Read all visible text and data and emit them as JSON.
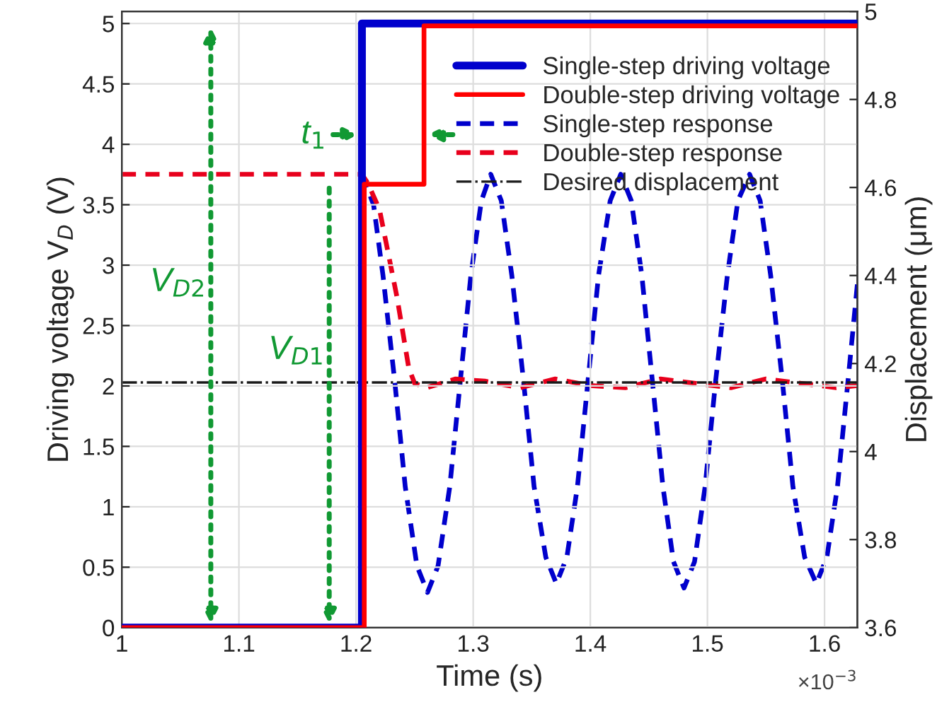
{
  "chart_data": {
    "type": "line",
    "xlabel": "Time (s)",
    "ylabel": "Driving voltage V$_{D}$ (V)",
    "y2label": "Displacement (μm)",
    "xlim": [
      1,
      1.628
    ],
    "xticks": [
      1,
      1.1,
      1.2,
      1.3,
      1.4,
      1.5,
      1.6
    ],
    "ylim": [
      0,
      5.1
    ],
    "yticks": [
      0,
      0.5,
      1,
      1.5,
      2,
      2.5,
      3,
      3.5,
      4,
      4.5,
      5
    ],
    "y2lim": [
      3.6,
      5
    ],
    "y2ticks": [
      3.6,
      3.8,
      4,
      4.2,
      4.4,
      4.6,
      4.8,
      5
    ],
    "grid": true,
    "legend": "top right",
    "series": [
      {
        "name": "Single-step driving voltage",
        "color": "#0000cc",
        "x": [
          1,
          1.205,
          1.205,
          1.628
        ],
        "values": [
          0,
          0,
          5,
          5
        ]
      },
      {
        "name": "Double-step driving voltage",
        "color": "#ff0000",
        "x": [
          1,
          1.207,
          1.207,
          1.258,
          1.258,
          1.628
        ],
        "values": [
          0,
          0,
          3.67,
          3.67,
          4.98,
          4.98
        ]
      },
      {
        "name": "Single-step response",
        "color": "#0000cc",
        "axis": "y2",
        "line_style": "dashed",
        "x": [
          1.205,
          1.215,
          1.223,
          1.233,
          1.242,
          1.252,
          1.261,
          1.27,
          1.28,
          1.289,
          1.298,
          1.307,
          1.315,
          1.324,
          1.333,
          1.343,
          1.352,
          1.362,
          1.371,
          1.38,
          1.389,
          1.398,
          1.407,
          1.417,
          1.426,
          1.435,
          1.444,
          1.453,
          1.462,
          1.471,
          1.48,
          1.489,
          1.498,
          1.507,
          1.517,
          1.526,
          1.536,
          1.545,
          1.554,
          1.564,
          1.573,
          1.583,
          1.593,
          1.602,
          1.611,
          1.62,
          1.628
        ],
        "values": [
          4.63,
          4.56,
          4.4,
          4.16,
          3.92,
          3.74,
          3.68,
          3.74,
          3.92,
          4.16,
          4.4,
          4.57,
          4.63,
          4.57,
          4.4,
          4.16,
          3.92,
          3.76,
          3.7,
          3.76,
          3.92,
          4.16,
          4.4,
          4.57,
          4.63,
          4.57,
          4.4,
          4.16,
          3.92,
          3.75,
          3.69,
          3.75,
          3.92,
          4.16,
          4.4,
          4.57,
          4.63,
          4.57,
          4.4,
          4.16,
          3.92,
          3.76,
          3.7,
          3.76,
          3.92,
          4.16,
          4.38
        ]
      },
      {
        "name": "Double-step response",
        "color": "#e8001c",
        "axis": "y2",
        "line_style": "dashed",
        "x": [
          1,
          1.205,
          1.21,
          1.22,
          1.235,
          1.245,
          1.25,
          1.26,
          1.285,
          1.31,
          1.34,
          1.37,
          1.4,
          1.43,
          1.46,
          1.49,
          1.52,
          1.55,
          1.58,
          1.61,
          1.628
        ],
        "values": [
          4.63,
          4.63,
          4.61,
          4.55,
          4.35,
          4.19,
          4.155,
          4.145,
          4.165,
          4.16,
          4.145,
          4.165,
          4.15,
          4.145,
          4.165,
          4.155,
          4.145,
          4.165,
          4.155,
          4.145,
          4.15
        ]
      }
    ],
    "ref_lines": [
      {
        "axis": "y2",
        "value": 4.157,
        "label": "Desired displacement",
        "color": "#1a1a1a",
        "line_style": "dashdot"
      }
    ],
    "annotations": [
      "V$_{D2}$",
      "V$_{D1}$",
      "t$_{1}$",
      "×10$^{−3}$"
    ]
  }
}
